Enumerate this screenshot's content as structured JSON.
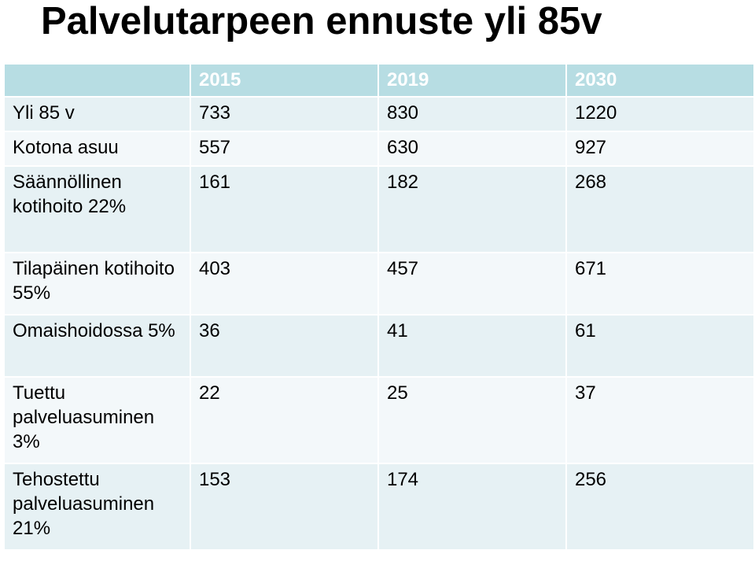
{
  "title": "Palvelutarpeen ennuste yli 85v",
  "table": {
    "headers": [
      "",
      "2015",
      "2019",
      "2030"
    ],
    "rows": [
      {
        "label": "Yli 85 v",
        "values": [
          "733",
          "830",
          "1220"
        ]
      },
      {
        "label": "Kotona asuu",
        "values": [
          "557",
          "630",
          "927"
        ]
      },
      {
        "label": "Säännöllinen kotihoito 22%",
        "values": [
          "161",
          "182",
          "268"
        ]
      },
      {
        "label": "Tilapäinen kotihoito 55%",
        "values": [
          "403",
          "457",
          "671"
        ]
      },
      {
        "label": "Omaishoidossa 5%",
        "values": [
          "36",
          "41",
          "61"
        ]
      },
      {
        "label": "Tuettu palveluasuminen 3%",
        "values": [
          "22",
          "25",
          "37"
        ]
      },
      {
        "label": "Tehostettu palveluasuminen 21%",
        "values": [
          "153",
          "174",
          "256"
        ]
      }
    ]
  },
  "colors": {
    "header_bg": "#b7dde3",
    "row_odd_bg": "#e6f1f4",
    "row_even_bg": "#f3f8fa"
  }
}
